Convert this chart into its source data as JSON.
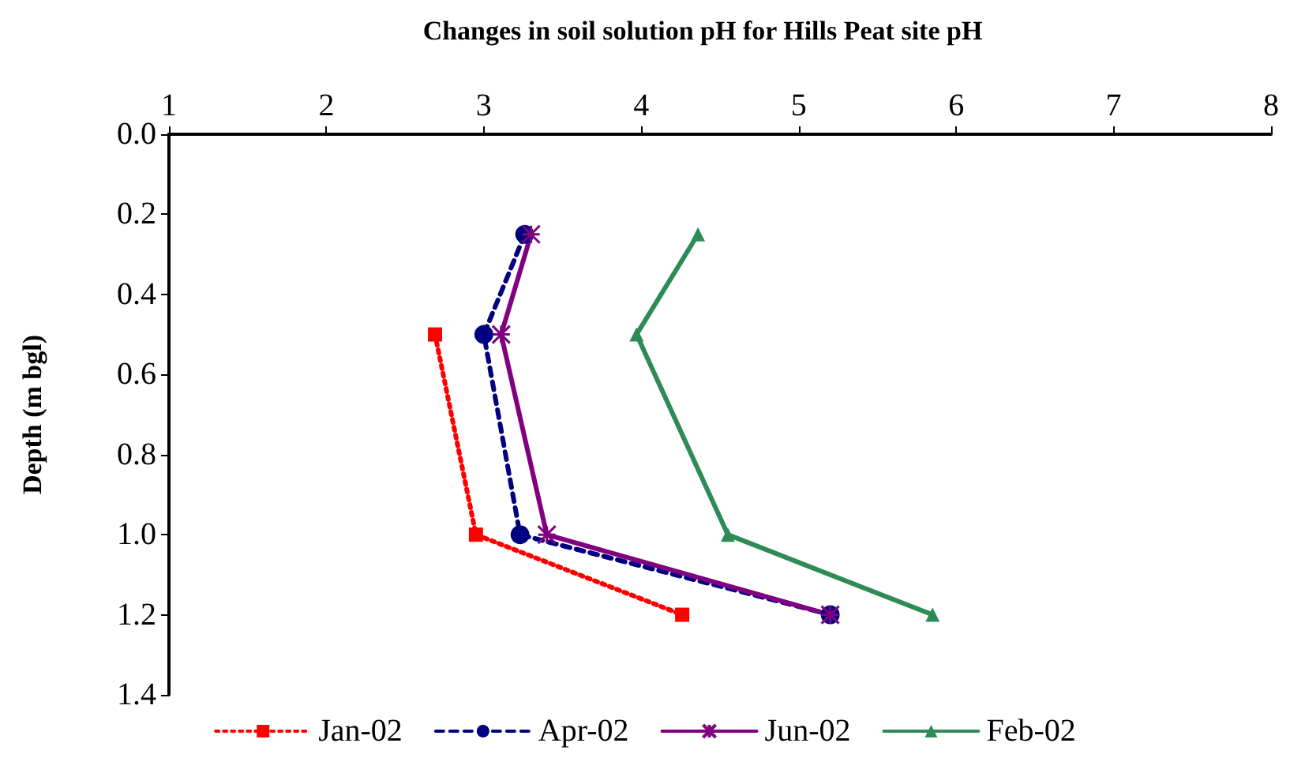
{
  "chart_data": {
    "type": "line",
    "title": "Changes in soil solution pH for Hills Peat site pH",
    "ylabel": "Depth (m bgl)",
    "xlim": [
      1,
      8
    ],
    "xticks": [
      1,
      2,
      3,
      4,
      5,
      6,
      7,
      8
    ],
    "ylim": [
      1.4,
      0
    ],
    "yticks": [
      {
        "value": 0,
        "label": "0.0"
      },
      {
        "value": 0.2,
        "label": "0.2"
      },
      {
        "value": 0.4,
        "label": "0.4"
      },
      {
        "value": 0.6,
        "label": "0.6"
      },
      {
        "value": 0.8,
        "label": "0.8"
      },
      {
        "value": 1,
        "label": "1.0"
      },
      {
        "value": 1.2,
        "label": "1.2"
      },
      {
        "value": 1.4,
        "label": "1.4"
      }
    ],
    "grid": false,
    "legend": "bottom",
    "series": [
      {
        "name": "Jan-02",
        "color": "#ff0000",
        "marker": "square",
        "line_style": "dotted",
        "x": [
          2.69,
          2.95,
          4.26
        ],
        "values": [
          0.5,
          1.0,
          1.2
        ]
      },
      {
        "name": "Apr-02",
        "color": "#000080",
        "marker": "circle",
        "line_style": "dashed",
        "x": [
          3.26,
          3.0,
          3.23,
          5.2
        ],
        "values": [
          0.25,
          0.5,
          1.0,
          1.2
        ]
      },
      {
        "name": "Jun-02",
        "color": "#800080",
        "marker": "cross",
        "line_style": "solid",
        "x": [
          3.3,
          3.11,
          3.4,
          5.2
        ],
        "values": [
          0.25,
          0.5,
          1.0,
          1.2
        ]
      },
      {
        "name": "Feb-02",
        "color": "#2e8b57",
        "marker": "triangle",
        "line_style": "solid",
        "x": [
          4.36,
          3.97,
          4.55,
          5.85
        ],
        "values": [
          0.25,
          0.5,
          1.0,
          1.2
        ]
      }
    ]
  }
}
